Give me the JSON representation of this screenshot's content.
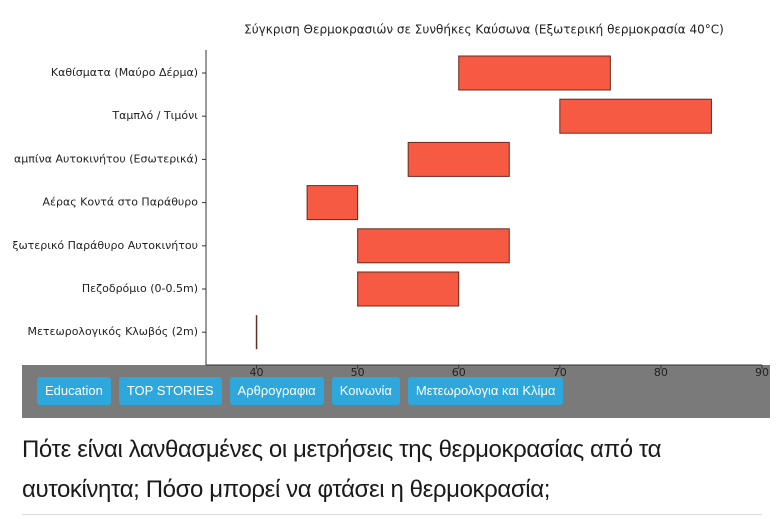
{
  "chart_data": {
    "type": "range-bar",
    "title": "Σύγκριση Θερμοκρασιών σε Συνθήκες Καύσωνα (Εξωτερική θερμοκρασία 40°C)",
    "categories": [
      "Καθίσματα (Μαύρο Δέρμα)",
      "Ταμπλό / Τιμόνι",
      "αμπίνα Αυτοκινήτου (Εσωτερικά)",
      "Αέρας Κοντά στο Παράθυρο",
      "ξωτερικό Παράθυρο Αυτοκινήτου",
      "Πεζοδρόμιο (0-0.5m)",
      "Μετεωρολογικός Κλωβός (2m)"
    ],
    "start": [
      60,
      70,
      55,
      45,
      50,
      50,
      40
    ],
    "end": [
      75,
      85,
      65,
      50,
      65,
      60,
      40
    ],
    "color": "#f65a42",
    "edge_color": "#6b2a20",
    "xlim": [
      35,
      90
    ],
    "xticks": [
      40,
      50,
      60,
      70,
      80,
      90
    ],
    "grid": false
  },
  "tags": [
    "Education",
    "TOP STORIES",
    "Αρθρογραφια",
    "Κοινωνία",
    "Μετεωρολογια και Κλίμα"
  ],
  "headline": "Πότε είναι λανθασμένες οι μετρήσεις της θερμοκρασίας από τα αυτοκίνητα; Πόσο μπορεί να φτάσει η θερμοκρασία;"
}
